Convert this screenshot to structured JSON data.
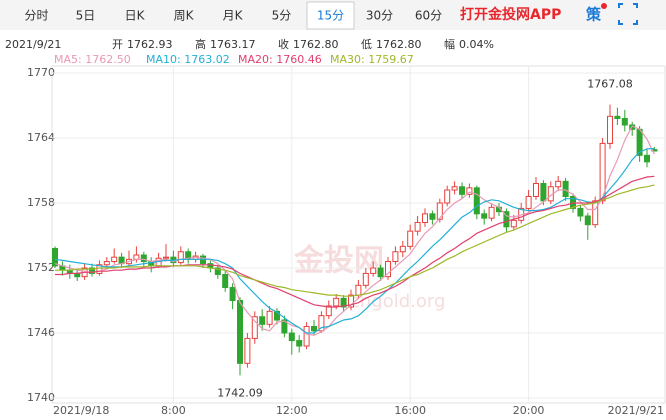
{
  "tabs": {
    "items": [
      "分时",
      "5日",
      "日K",
      "周K",
      "月K",
      "5分",
      "15分",
      "30分",
      "60分"
    ],
    "active": 6
  },
  "brand": "打开金投网APP",
  "strategy": "策",
  "info": {
    "date": "2021/9/21",
    "items": [
      {
        "label": "开",
        "value": "1762.93"
      },
      {
        "label": "高",
        "value": "1763.17"
      },
      {
        "label": "收",
        "value": "1762.80"
      },
      {
        "label": "低",
        "value": "1762.80"
      },
      {
        "label": "幅",
        "value": "0.04%"
      }
    ]
  },
  "watermark": {
    "logo": "金投网",
    "site": "cngold.org"
  },
  "chart_data": {
    "type": "candlestick",
    "categories": [
      "2021/9/18",
      null,
      null,
      null,
      null,
      null,
      null,
      null,
      null,
      null,
      null,
      null,
      null,
      null,
      null,
      null,
      "8:00",
      null,
      null,
      null,
      null,
      null,
      null,
      null,
      null,
      null,
      null,
      null,
      null,
      null,
      null,
      null,
      "12:00",
      null,
      null,
      null,
      null,
      null,
      null,
      null,
      null,
      null,
      null,
      null,
      null,
      null,
      null,
      null,
      "16:00",
      null,
      null,
      null,
      null,
      null,
      null,
      null,
      null,
      null,
      null,
      null,
      null,
      null,
      null,
      null,
      "20:00",
      null,
      null,
      null,
      null,
      null,
      null,
      null,
      null,
      null,
      null,
      null,
      null,
      null,
      null,
      null,
      null,
      "2021/9/21"
    ],
    "up_color": "#e8413e",
    "down_color": "#2ea52e",
    "ohlc": [
      [
        1753.8,
        1754.0,
        1752.0,
        1752.2
      ],
      [
        1752.2,
        1752.6,
        1751.3,
        1751.8
      ],
      [
        1751.8,
        1752.3,
        1751.0,
        1751.5
      ],
      [
        1751.5,
        1751.9,
        1750.8,
        1751.2
      ],
      [
        1751.2,
        1752.4,
        1750.9,
        1752.0
      ],
      [
        1752.0,
        1752.4,
        1751.2,
        1751.5
      ],
      [
        1751.5,
        1752.7,
        1751.3,
        1752.3
      ],
      [
        1752.3,
        1753.0,
        1752.0,
        1752.6
      ],
      [
        1752.6,
        1753.8,
        1752.4,
        1753.0
      ],
      [
        1753.0,
        1753.4,
        1752.0,
        1752.4
      ],
      [
        1752.4,
        1753.6,
        1752.2,
        1752.8
      ],
      [
        1752.8,
        1754.0,
        1752.5,
        1753.2
      ],
      [
        1753.2,
        1753.5,
        1752.0,
        1752.6
      ],
      [
        1752.6,
        1753.0,
        1751.6,
        1752.2
      ],
      [
        1752.2,
        1753.4,
        1752.0,
        1752.9
      ],
      [
        1752.9,
        1754.2,
        1752.6,
        1753.0
      ],
      [
        1753.0,
        1753.6,
        1752.1,
        1752.5
      ],
      [
        1752.5,
        1754.0,
        1752.3,
        1753.5
      ],
      [
        1753.5,
        1753.8,
        1752.4,
        1752.8
      ],
      [
        1752.8,
        1753.5,
        1752.5,
        1753.1
      ],
      [
        1753.1,
        1753.3,
        1752.0,
        1752.4
      ],
      [
        1752.4,
        1752.7,
        1751.6,
        1752.0
      ],
      [
        1752.0,
        1752.3,
        1751.0,
        1751.4
      ],
      [
        1751.4,
        1751.8,
        1749.8,
        1750.2
      ],
      [
        1750.2,
        1750.6,
        1748.2,
        1749.0
      ],
      [
        1749.0,
        1749.3,
        1742.09,
        1743.2
      ],
      [
        1743.2,
        1746.0,
        1742.8,
        1745.5
      ],
      [
        1745.5,
        1748.0,
        1745.0,
        1747.5
      ],
      [
        1747.5,
        1748.2,
        1746.2,
        1746.8
      ],
      [
        1746.8,
        1748.5,
        1746.5,
        1748.0
      ],
      [
        1748.0,
        1748.3,
        1746.8,
        1747.2
      ],
      [
        1747.2,
        1747.6,
        1745.6,
        1746.0
      ],
      [
        1746.0,
        1746.4,
        1744.0,
        1745.3
      ],
      [
        1745.3,
        1745.8,
        1744.2,
        1744.8
      ],
      [
        1744.8,
        1747.0,
        1744.5,
        1746.6
      ],
      [
        1746.6,
        1747.2,
        1745.8,
        1746.2
      ],
      [
        1746.2,
        1748.0,
        1746.0,
        1747.6
      ],
      [
        1747.6,
        1749.0,
        1747.3,
        1748.5
      ],
      [
        1748.5,
        1749.6,
        1748.2,
        1749.2
      ],
      [
        1749.2,
        1749.5,
        1748.0,
        1748.4
      ],
      [
        1748.4,
        1750.0,
        1748.1,
        1749.5
      ],
      [
        1749.5,
        1750.9,
        1749.2,
        1750.4
      ],
      [
        1750.4,
        1752.0,
        1750.1,
        1751.5
      ],
      [
        1751.5,
        1752.6,
        1751.2,
        1752.0
      ],
      [
        1752.0,
        1752.3,
        1750.8,
        1751.2
      ],
      [
        1751.2,
        1753.0,
        1750.9,
        1752.6
      ],
      [
        1752.6,
        1754.0,
        1752.3,
        1753.5
      ],
      [
        1753.5,
        1754.5,
        1753.0,
        1754.0
      ],
      [
        1754.0,
        1756.0,
        1753.7,
        1755.4
      ],
      [
        1755.4,
        1756.8,
        1755.0,
        1756.2
      ],
      [
        1756.2,
        1757.5,
        1755.8,
        1757.0
      ],
      [
        1757.0,
        1757.3,
        1756.0,
        1756.5
      ],
      [
        1756.5,
        1758.4,
        1756.2,
        1758.0
      ],
      [
        1758.0,
        1759.6,
        1757.7,
        1759.2
      ],
      [
        1759.2,
        1760.0,
        1758.8,
        1759.5
      ],
      [
        1759.5,
        1759.9,
        1758.4,
        1758.8
      ],
      [
        1758.8,
        1759.8,
        1758.5,
        1759.4
      ],
      [
        1759.4,
        1759.6,
        1756.5,
        1757.0
      ],
      [
        1757.0,
        1757.4,
        1756.0,
        1756.6
      ],
      [
        1756.6,
        1758.0,
        1756.3,
        1757.6
      ],
      [
        1757.6,
        1758.0,
        1756.8,
        1757.2
      ],
      [
        1757.2,
        1757.5,
        1755.3,
        1755.8
      ],
      [
        1755.8,
        1756.9,
        1755.5,
        1756.4
      ],
      [
        1756.4,
        1758.0,
        1756.1,
        1757.5
      ],
      [
        1757.5,
        1759.2,
        1757.2,
        1758.6
      ],
      [
        1758.6,
        1760.4,
        1758.3,
        1759.8
      ],
      [
        1759.8,
        1760.1,
        1757.8,
        1758.2
      ],
      [
        1758.2,
        1760.0,
        1757.9,
        1759.5
      ],
      [
        1759.5,
        1760.5,
        1759.1,
        1760.0
      ],
      [
        1760.0,
        1760.3,
        1758.2,
        1758.6
      ],
      [
        1758.6,
        1758.9,
        1757.1,
        1757.5
      ],
      [
        1757.5,
        1757.8,
        1756.3,
        1756.8
      ],
      [
        1756.8,
        1757.1,
        1754.6,
        1756.0
      ],
      [
        1756.0,
        1758.6,
        1755.7,
        1758.2
      ],
      [
        1758.2,
        1764.0,
        1757.9,
        1763.5
      ],
      [
        1763.5,
        1767.08,
        1763.0,
        1766.0
      ],
      [
        1766.0,
        1766.8,
        1765.2,
        1765.8
      ],
      [
        1765.8,
        1766.6,
        1764.6,
        1765.2
      ],
      [
        1765.2,
        1765.5,
        1764.2,
        1764.8
      ],
      [
        1764.8,
        1765.1,
        1761.8,
        1762.4
      ],
      [
        1762.4,
        1763.0,
        1761.3,
        1761.8
      ],
      [
        1762.93,
        1763.17,
        1762.8,
        1762.8
      ]
    ],
    "series": [
      {
        "name": "MA5: 1762.50",
        "color": "#e89ab4",
        "values": [
          1752.4,
          1752.2,
          1752.0,
          1751.8,
          1751.7,
          1751.6,
          1751.7,
          1751.9,
          1752.3,
          1752.4,
          1752.6,
          1752.8,
          1752.8,
          1752.6,
          1752.7,
          1752.8,
          1752.6,
          1752.8,
          1752.9,
          1753.0,
          1752.9,
          1752.8,
          1752.4,
          1751.8,
          1751.0,
          1748.8,
          1747.9,
          1747.1,
          1746.4,
          1746.2,
          1747.0,
          1747.1,
          1746.7,
          1746.5,
          1745.9,
          1745.8,
          1746.1,
          1746.6,
          1747.4,
          1748.0,
          1748.6,
          1749.2,
          1749.8,
          1750.4,
          1750.9,
          1751.5,
          1752.1,
          1752.7,
          1753.3,
          1754.3,
          1755.2,
          1755.8,
          1756.6,
          1757.4,
          1758.0,
          1758.4,
          1759.0,
          1758.8,
          1758.3,
          1757.9,
          1757.6,
          1756.8,
          1756.7,
          1756.9,
          1757.1,
          1757.6,
          1758.1,
          1758.7,
          1759.2,
          1759.2,
          1758.8,
          1758.1,
          1757.4,
          1757.4,
          1758.5,
          1760.5,
          1762.0,
          1763.8,
          1765.1,
          1764.8,
          1763.9,
          1762.5
        ]
      },
      {
        "name": "MA10: 1763.02",
        "color": "#22b0d6",
        "values": [
          1752.8,
          1752.7,
          1752.6,
          1752.5,
          1752.4,
          1752.3,
          1752.2,
          1752.1,
          1752.1,
          1752.1,
          1752.2,
          1752.3,
          1752.4,
          1752.5,
          1752.6,
          1752.7,
          1752.7,
          1752.8,
          1752.8,
          1752.8,
          1752.8,
          1752.8,
          1752.7,
          1752.4,
          1752.0,
          1751.0,
          1750.3,
          1749.6,
          1748.9,
          1748.3,
          1747.9,
          1747.4,
          1746.9,
          1746.5,
          1746.0,
          1746.0,
          1746.5,
          1746.6,
          1746.9,
          1747.2,
          1747.3,
          1747.6,
          1748.2,
          1748.9,
          1749.4,
          1750.0,
          1750.6,
          1751.3,
          1752.0,
          1752.6,
          1753.3,
          1754.0,
          1754.6,
          1755.3,
          1756.0,
          1756.7,
          1757.1,
          1757.7,
          1758.1,
          1758.3,
          1758.2,
          1757.9,
          1757.6,
          1757.4,
          1757.3,
          1757.3,
          1757.4,
          1757.6,
          1758.0,
          1758.4,
          1758.4,
          1758.3,
          1758.1,
          1758.0,
          1758.5,
          1759.3,
          1760.1,
          1761.0,
          1762.0,
          1762.7,
          1763.0,
          1763.02
        ]
      },
      {
        "name": "MA20: 1760.46",
        "color": "#e0406e",
        "values": [
          1751.4,
          1751.4,
          1751.5,
          1751.5,
          1751.6,
          1751.6,
          1751.7,
          1751.7,
          1751.8,
          1751.8,
          1751.9,
          1751.9,
          1752.0,
          1752.0,
          1752.1,
          1752.1,
          1752.2,
          1752.2,
          1752.3,
          1752.3,
          1752.3,
          1752.3,
          1752.2,
          1752.1,
          1751.9,
          1751.5,
          1751.2,
          1750.9,
          1750.6,
          1750.3,
          1750.1,
          1749.8,
          1749.5,
          1749.2,
          1748.9,
          1748.6,
          1748.5,
          1748.4,
          1748.4,
          1748.5,
          1748.6,
          1748.8,
          1749.2,
          1749.5,
          1749.7,
          1750.0,
          1750.3,
          1750.7,
          1751.2,
          1751.6,
          1752.0,
          1752.5,
          1752.9,
          1753.4,
          1753.8,
          1754.3,
          1754.7,
          1755.2,
          1755.5,
          1755.8,
          1756.1,
          1756.3,
          1756.5,
          1756.7,
          1757.0,
          1757.2,
          1757.3,
          1757.5,
          1757.7,
          1757.8,
          1758.0,
          1758.0,
          1758.0,
          1758.1,
          1758.4,
          1758.8,
          1759.2,
          1759.6,
          1760.0,
          1760.2,
          1760.4,
          1760.46
        ]
      },
      {
        "name": "MA30: 1759.67",
        "color": "#9fb82a",
        "values": [
          1751.8,
          1751.8,
          1751.8,
          1751.9,
          1751.9,
          1751.9,
          1752.0,
          1752.0,
          1752.0,
          1752.1,
          1752.1,
          1752.1,
          1752.1,
          1752.2,
          1752.2,
          1752.2,
          1752.2,
          1752.2,
          1752.2,
          1752.2,
          1752.1,
          1752.0,
          1751.9,
          1751.8,
          1751.6,
          1751.3,
          1751.1,
          1750.9,
          1750.7,
          1750.5,
          1750.3,
          1750.2,
          1750.0,
          1749.9,
          1749.8,
          1749.7,
          1749.6,
          1749.5,
          1749.5,
          1749.4,
          1749.4,
          1749.5,
          1749.6,
          1749.8,
          1750.0,
          1750.3,
          1750.6,
          1750.9,
          1751.2,
          1751.4,
          1751.7,
          1752.0,
          1752.4,
          1752.8,
          1753.1,
          1753.5,
          1753.8,
          1754.1,
          1754.4,
          1754.7,
          1755.0,
          1755.3,
          1755.5,
          1755.8,
          1756.1,
          1756.4,
          1756.7,
          1757.0,
          1757.2,
          1757.4,
          1757.6,
          1757.8,
          1757.9,
          1758.0,
          1758.3,
          1758.5,
          1758.8,
          1759.0,
          1759.2,
          1759.4,
          1759.5,
          1759.67
        ]
      }
    ],
    "annotations": [
      {
        "text": "1767.08",
        "index": 75
      },
      {
        "text": "1742.09",
        "index": 25
      }
    ],
    "ylim": [
      1740,
      1770
    ],
    "yticks": [
      1740,
      1746,
      1752,
      1758,
      1764,
      1770
    ],
    "grid": true
  }
}
